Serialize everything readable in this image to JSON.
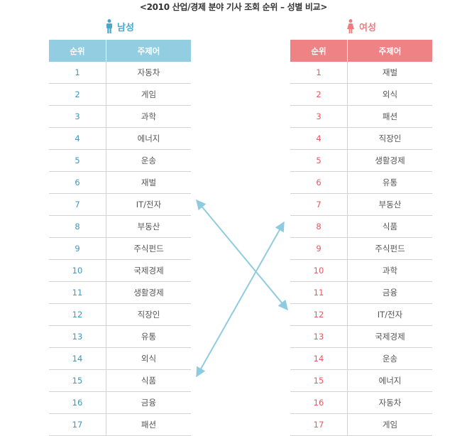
{
  "title": "<2010 산업/경제 분야 기사 조회 순위 – 성별 비교>",
  "male": {
    "label": "남성",
    "headers": {
      "rank": "순위",
      "keyword": "주제어"
    },
    "rows": [
      {
        "rank": "1",
        "keyword": "자동차"
      },
      {
        "rank": "2",
        "keyword": "게임"
      },
      {
        "rank": "3",
        "keyword": "과학"
      },
      {
        "rank": "4",
        "keyword": "에너지"
      },
      {
        "rank": "5",
        "keyword": "운송"
      },
      {
        "rank": "6",
        "keyword": "재벌"
      },
      {
        "rank": "7",
        "keyword": "IT/전자"
      },
      {
        "rank": "8",
        "keyword": "부동산"
      },
      {
        "rank": "9",
        "keyword": "주식펀드"
      },
      {
        "rank": "10",
        "keyword": "국제경제"
      },
      {
        "rank": "11",
        "keyword": "생활경제"
      },
      {
        "rank": "12",
        "keyword": "직장인"
      },
      {
        "rank": "13",
        "keyword": "유통"
      },
      {
        "rank": "14",
        "keyword": "외식"
      },
      {
        "rank": "15",
        "keyword": "식품"
      },
      {
        "rank": "16",
        "keyword": "금융"
      },
      {
        "rank": "17",
        "keyword": "패션"
      }
    ]
  },
  "female": {
    "label": "여성",
    "headers": {
      "rank": "순위",
      "keyword": "주제어"
    },
    "rows": [
      {
        "rank": "1",
        "keyword": "재벌"
      },
      {
        "rank": "2",
        "keyword": "외식"
      },
      {
        "rank": "3",
        "keyword": "패션"
      },
      {
        "rank": "4",
        "keyword": "직장인"
      },
      {
        "rank": "5",
        "keyword": "생활경제"
      },
      {
        "rank": "6",
        "keyword": "유통"
      },
      {
        "rank": "7",
        "keyword": "부동산"
      },
      {
        "rank": "8",
        "keyword": "식품"
      },
      {
        "rank": "9",
        "keyword": "주식펀드"
      },
      {
        "rank": "10",
        "keyword": "과학"
      },
      {
        "rank": "11",
        "keyword": "금융"
      },
      {
        "rank": "12",
        "keyword": "IT/전자"
      },
      {
        "rank": "13",
        "keyword": "국제경제"
      },
      {
        "rank": "14",
        "keyword": "운송"
      },
      {
        "rank": "15",
        "keyword": "에너지"
      },
      {
        "rank": "16",
        "keyword": "자동차"
      },
      {
        "rank": "17",
        "keyword": "게임"
      }
    ]
  },
  "connections": [
    {
      "from_male_rank": 7,
      "to_female_rank": 12,
      "keyword": "IT/전자"
    },
    {
      "from_male_rank": 15,
      "to_female_rank": 8,
      "keyword": "식품"
    }
  ],
  "colors": {
    "male_accent": "#4aa7cb",
    "male_header": "#92cde1",
    "female_accent": "#ef7c7f",
    "female_header": "#ef8285",
    "arrow": "#8fcbe0"
  },
  "icons": {
    "male": "male-person-icon",
    "female": "female-person-icon"
  }
}
